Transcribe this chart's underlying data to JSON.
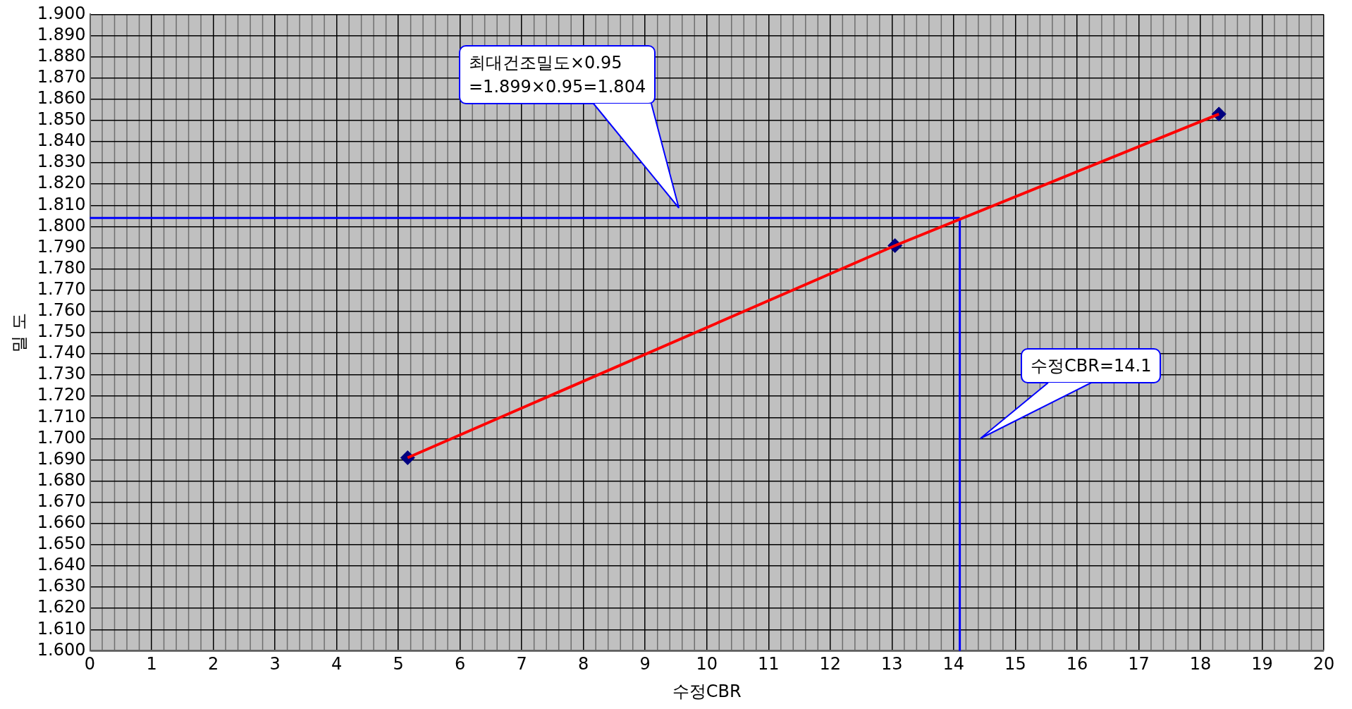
{
  "chart_data": {
    "type": "line",
    "xlabel": "수정CBR",
    "ylabel": "밀 도",
    "xlim": [
      0,
      20
    ],
    "xticks": [
      0,
      1,
      2,
      3,
      4,
      5,
      6,
      7,
      8,
      9,
      10,
      11,
      12,
      13,
      14,
      15,
      16,
      17,
      18,
      19,
      20
    ],
    "ylim": [
      1.6,
      1.9
    ],
    "yticks": [
      {
        "value": 1.6,
        "label": "1.600"
      },
      {
        "value": 1.61,
        "label": "1.610"
      },
      {
        "value": 1.62,
        "label": "1.620"
      },
      {
        "value": 1.63,
        "label": "1.630"
      },
      {
        "value": 1.64,
        "label": "1.640"
      },
      {
        "value": 1.65,
        "label": "1.650"
      },
      {
        "value": 1.66,
        "label": "1.660"
      },
      {
        "value": 1.67,
        "label": "1.670"
      },
      {
        "value": 1.68,
        "label": "1.680"
      },
      {
        "value": 1.69,
        "label": "1.690"
      },
      {
        "value": 1.7,
        "label": "1.700"
      },
      {
        "value": 1.71,
        "label": "1.710"
      },
      {
        "value": 1.72,
        "label": "1.720"
      },
      {
        "value": 1.73,
        "label": "1.730"
      },
      {
        "value": 1.74,
        "label": "1.740"
      },
      {
        "value": 1.75,
        "label": "1.750"
      },
      {
        "value": 1.76,
        "label": "1.760"
      },
      {
        "value": 1.77,
        "label": "1.770"
      },
      {
        "value": 1.78,
        "label": "1.780"
      },
      {
        "value": 1.79,
        "label": "1.790"
      },
      {
        "value": 1.8,
        "label": "1.800"
      },
      {
        "value": 1.81,
        "label": "1.810"
      },
      {
        "value": 1.82,
        "label": "1.820"
      },
      {
        "value": 1.83,
        "label": "1.830"
      },
      {
        "value": 1.84,
        "label": "1.840"
      },
      {
        "value": 1.85,
        "label": "1.850"
      },
      {
        "value": 1.86,
        "label": "1.860"
      },
      {
        "value": 1.87,
        "label": "1.870"
      },
      {
        "value": 1.88,
        "label": "1.880"
      },
      {
        "value": 1.89,
        "label": "1.890"
      },
      {
        "value": 1.9,
        "label": "1.900"
      }
    ],
    "grid": true,
    "legend": false,
    "series": [
      {
        "color": "#ff0000",
        "marker": "none",
        "x": [
          5.15,
          13.05,
          18.3
        ],
        "values": [
          1.691,
          1.791,
          1.853
        ]
      },
      {
        "type": "scatter",
        "color": "#000080",
        "marker": "diamond",
        "x": [
          5.15,
          13.05,
          18.3
        ],
        "values": [
          1.691,
          1.791,
          1.853
        ]
      }
    ],
    "ref_lines": [
      {
        "axis": "y",
        "value": 1.804,
        "color": "#0000ff"
      },
      {
        "axis": "x",
        "value": 14.1,
        "color": "#0000ff"
      }
    ],
    "annotations": [
      "최대건조밀도×0.95\n=1.899×0.95=1.804",
      "수정CBR=14.1"
    ]
  }
}
